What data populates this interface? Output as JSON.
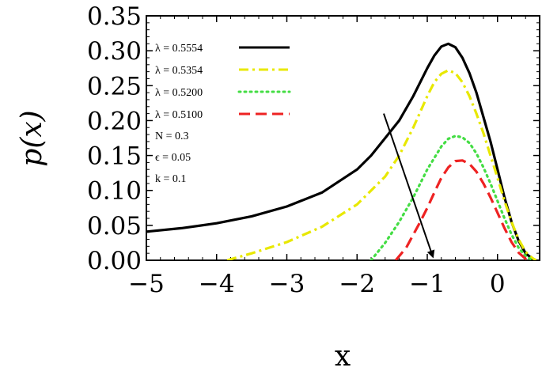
{
  "chart_data": {
    "type": "line",
    "title": "",
    "xlabel": "x",
    "ylabel": "p(x)",
    "xlim": [
      -5,
      0.6
    ],
    "ylim": [
      0,
      0.35
    ],
    "xticks": [
      -5,
      -4,
      -3,
      -2,
      -1,
      0
    ],
    "xtick_labels": [
      "−5",
      "−4",
      "−3",
      "−2",
      "−1",
      "0"
    ],
    "yticks": [
      0,
      0.05,
      0.1,
      0.15,
      0.2,
      0.25,
      0.3,
      0.35
    ],
    "ytick_labels": [
      "0.00",
      "0.05",
      "0.10",
      "0.15",
      "0.20",
      "0.25",
      "0.30",
      "0.35"
    ],
    "grid": false,
    "legend_position": "top-left",
    "series": [
      {
        "name": "λ = 0.5554",
        "color": "#000000",
        "style": "solid",
        "x": [
          -5,
          -4.5,
          -4,
          -3.5,
          -3,
          -2.5,
          -2,
          -1.8,
          -1.6,
          -1.4,
          -1.2,
          -1,
          -0.9,
          -0.8,
          -0.7,
          -0.6,
          -0.5,
          -0.4,
          -0.3,
          -0.2,
          -0.1,
          0,
          0.1,
          0.2,
          0.3,
          0.4,
          0.5,
          0.55
        ],
        "y": [
          0.041,
          0.046,
          0.053,
          0.063,
          0.077,
          0.097,
          0.13,
          0.15,
          0.175,
          0.2,
          0.235,
          0.275,
          0.293,
          0.306,
          0.31,
          0.305,
          0.29,
          0.268,
          0.24,
          0.205,
          0.17,
          0.13,
          0.09,
          0.055,
          0.028,
          0.01,
          0.002,
          0.0
        ]
      },
      {
        "name": "λ = 0.5354",
        "color": "#e8e800",
        "style": "dashdot",
        "x": [
          -3.85,
          -3.5,
          -3,
          -2.5,
          -2,
          -1.6,
          -1.4,
          -1.2,
          -1,
          -0.9,
          -0.8,
          -0.7,
          -0.6,
          -0.5,
          -0.4,
          -0.3,
          -0.2,
          -0.1,
          0,
          0.1,
          0.2,
          0.3,
          0.4,
          0.5,
          0.55
        ],
        "y": [
          0.0,
          0.01,
          0.026,
          0.048,
          0.08,
          0.12,
          0.15,
          0.19,
          0.235,
          0.255,
          0.267,
          0.272,
          0.268,
          0.255,
          0.235,
          0.21,
          0.182,
          0.15,
          0.118,
          0.085,
          0.055,
          0.03,
          0.012,
          0.003,
          0.0
        ]
      },
      {
        "name": "λ = 0.5200",
        "color": "#44dd44",
        "style": "dotted",
        "x": [
          -1.8,
          -1.6,
          -1.4,
          -1.2,
          -1,
          -0.8,
          -0.7,
          -0.6,
          -0.5,
          -0.4,
          -0.3,
          -0.2,
          -0.1,
          0,
          0.1,
          0.2,
          0.3,
          0.4,
          0.5
        ],
        "y": [
          0.0,
          0.025,
          0.055,
          0.09,
          0.13,
          0.163,
          0.174,
          0.178,
          0.176,
          0.168,
          0.153,
          0.133,
          0.11,
          0.085,
          0.06,
          0.037,
          0.018,
          0.006,
          0.0
        ]
      },
      {
        "name": "λ = 0.5100",
        "color": "#ee2222",
        "style": "dashed",
        "x": [
          -1.45,
          -1.3,
          -1.1,
          -1,
          -0.9,
          -0.8,
          -0.7,
          -0.6,
          -0.5,
          -0.4,
          -0.3,
          -0.2,
          -0.1,
          0,
          0.1,
          0.2,
          0.3,
          0.4,
          0.45
        ],
        "y": [
          0.0,
          0.018,
          0.055,
          0.075,
          0.097,
          0.118,
          0.133,
          0.142,
          0.143,
          0.138,
          0.127,
          0.11,
          0.09,
          0.068,
          0.046,
          0.026,
          0.011,
          0.002,
          0.0
        ]
      }
    ],
    "annotations": [
      "N = 0.3",
      "ϵ = 0.05",
      "k = 0.1"
    ],
    "arrow": {
      "from": [
        -1.62,
        0.21
      ],
      "to": [
        -0.92,
        0.005
      ]
    }
  }
}
